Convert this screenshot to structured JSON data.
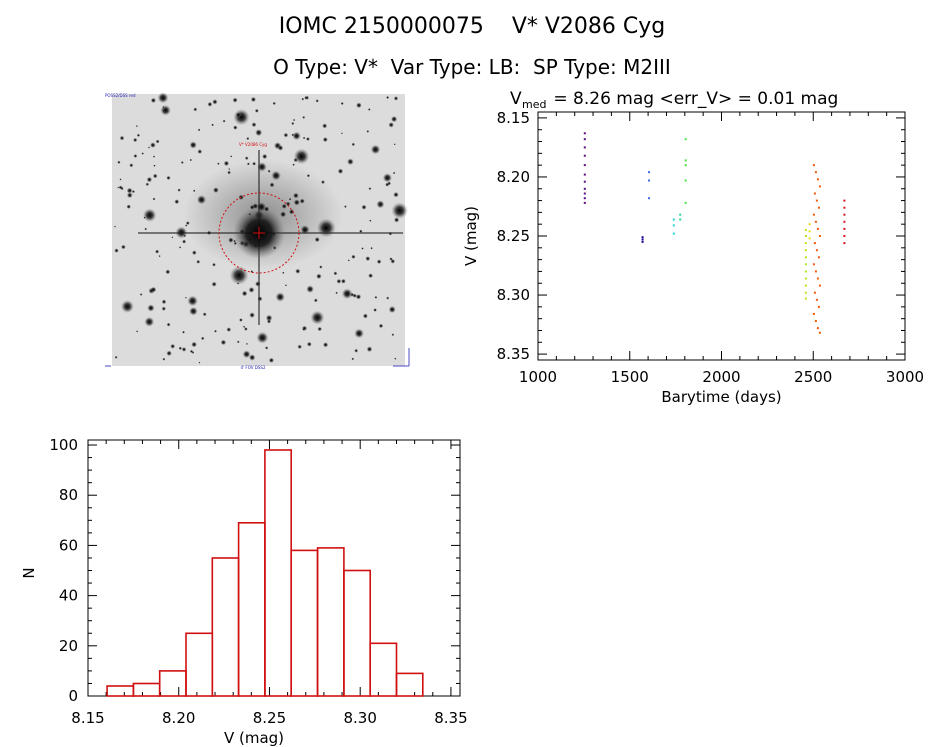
{
  "header": {
    "title": "IOMC 2150000075    V* V2086 Cyg",
    "subtitle": "O Type: V*  Var Type: LB:  SP Type: M2III"
  },
  "sky_image": {
    "top_left_label": "POSS2/DSS red",
    "target_label": "V* V2086 Cyg",
    "bottom_label": "4' FOV DSS2"
  },
  "chart_data": [
    {
      "type": "scatter",
      "title_prefix": "V",
      "title_sub": "med",
      "title_rest": " = 8.26 mag <err_V> = 0.01 mag",
      "xlabel": "Barytime (days)",
      "ylabel": "V (mag)",
      "xlim": [
        1000,
        3000
      ],
      "ylim": [
        8.355,
        8.145
      ],
      "xticks": [
        1000,
        1500,
        2000,
        2500,
        3000
      ],
      "yticks": [
        8.15,
        8.2,
        8.25,
        8.3,
        8.35
      ],
      "xtick_labels": [
        "1000",
        "1500",
        "2000",
        "2500",
        "3000"
      ],
      "ytick_labels": [
        "8.15",
        "8.20",
        "8.25",
        "8.30",
        "8.35"
      ],
      "series": [
        {
          "name": "epoch-1250",
          "color": "#5a0a82",
          "x": 1255,
          "y": [
            8.163,
            8.168,
            8.175,
            8.182,
            8.19,
            8.198,
            8.204,
            8.21,
            8.214,
            8.218,
            8.222
          ]
        },
        {
          "name": "epoch-1570",
          "color": "#1c0a9a",
          "x": 1570,
          "y": [
            8.251,
            8.253,
            8.255
          ]
        },
        {
          "name": "epoch-1605",
          "color": "#3c6ee6",
          "x": 1605,
          "y": [
            8.196,
            8.203,
            8.218
          ]
        },
        {
          "name": "epoch-1740",
          "color": "#1ed2dc",
          "x": 1740,
          "y": [
            8.236,
            8.241,
            8.248
          ]
        },
        {
          "name": "epoch-1775",
          "color": "#28dc8c",
          "x": 1775,
          "y": [
            8.232,
            8.236
          ]
        },
        {
          "name": "epoch-1805",
          "color": "#46e646",
          "x": 1805,
          "y": [
            8.168,
            8.186,
            8.19,
            8.203,
            8.222
          ]
        },
        {
          "name": "epoch-2460",
          "color": "#b4e61e",
          "x": 2460,
          "y": [
            8.245,
            8.25,
            8.256,
            8.262,
            8.268,
            8.274,
            8.28,
            8.286,
            8.292,
            8.298,
            8.303
          ]
        },
        {
          "name": "epoch-2480",
          "color": "#e6dc14",
          "x": 2480,
          "y": [
            8.24,
            8.246,
            8.252
          ]
        },
        {
          "name": "epoch-2520",
          "color": "#f05a0a",
          "x": 2520,
          "y": [
            8.19,
            8.196,
            8.202,
            8.208,
            8.214,
            8.22,
            8.226,
            8.232,
            8.238,
            8.244,
            8.25,
            8.256,
            8.262,
            8.268,
            8.274,
            8.28,
            8.286,
            8.292,
            8.298,
            8.304,
            8.31,
            8.316,
            8.322,
            8.328,
            8.332
          ]
        },
        {
          "name": "epoch-2670",
          "color": "#d2141e",
          "x": 2670,
          "y": [
            8.22,
            8.226,
            8.232,
            8.238,
            8.244,
            8.25,
            8.256
          ]
        }
      ]
    },
    {
      "type": "bar",
      "style": "histogram",
      "xlabel": "V (mag)",
      "ylabel": "N",
      "xlim": [
        8.15,
        8.355
      ],
      "ylim": [
        0,
        102
      ],
      "xticks": [
        8.15,
        8.2,
        8.25,
        8.3,
        8.35
      ],
      "yticks": [
        0,
        20,
        40,
        60,
        80,
        100
      ],
      "xtick_labels": [
        "8.15",
        "8.20",
        "8.25",
        "8.30",
        "8.35"
      ],
      "ytick_labels": [
        "0",
        "20",
        "40",
        "60",
        "80",
        "100"
      ],
      "bin_edges": [
        8.1605,
        8.175,
        8.1895,
        8.204,
        8.2185,
        8.233,
        8.2475,
        8.262,
        8.2765,
        8.291,
        8.3055,
        8.32,
        8.3345
      ],
      "values": [
        4,
        5,
        10,
        25,
        55,
        69,
        98,
        58,
        59,
        50,
        21,
        9
      ],
      "bar_color": "#d01010"
    }
  ]
}
